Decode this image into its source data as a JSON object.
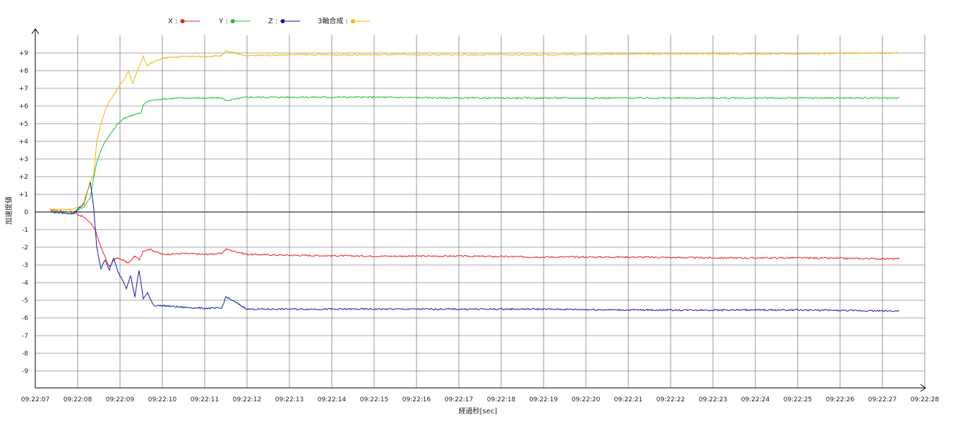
{
  "chart_data": {
    "type": "line",
    "title": "",
    "xlabel": "経過秒[sec]",
    "ylabel": "加速度値",
    "ylim": [
      -10,
      10
    ],
    "yticks": [
      "+9",
      "+8",
      "+7",
      "+6",
      "+5",
      "+4",
      "+3",
      "+2",
      "+1",
      "0",
      "-1",
      "-2",
      "-3",
      "-4",
      "-5",
      "-6",
      "-7",
      "-8",
      "-9"
    ],
    "ytick_values": [
      9,
      8,
      7,
      6,
      5,
      4,
      3,
      2,
      1,
      0,
      -1,
      -2,
      -3,
      -4,
      -5,
      -6,
      -7,
      -8,
      -9
    ],
    "xlim": [
      0,
      21
    ],
    "xticks": [
      "09:22:07",
      "09:22:08",
      "09:22:09",
      "09:22:10",
      "09:22:11",
      "09:22:12",
      "09:22:13",
      "09:22:14",
      "09:22:15",
      "09:22:16",
      "09:22:17",
      "09:22:18",
      "09:22:19",
      "09:22:20",
      "09:22:21",
      "09:22:22",
      "09:22:23",
      "09:22:24",
      "09:22:25",
      "09:22:26",
      "09:22:27",
      "09:22:28"
    ],
    "grid": true,
    "legend_position": "top-left",
    "series": [
      {
        "name": "X",
        "legend_label": "X :",
        "color": "#e8231e",
        "x": [
          0.35,
          0.9,
          1.15,
          1.3,
          1.42,
          1.5,
          1.6,
          1.75,
          1.9,
          2.05,
          2.2,
          2.35,
          2.45,
          2.55,
          2.7,
          3.0,
          3.5,
          4.0,
          4.4,
          4.5,
          5.0,
          6.0,
          8.0,
          10.0,
          12.0,
          14.0,
          16.0,
          18.0,
          20.0,
          20.4
        ],
        "y": [
          0.1,
          0.0,
          -0.3,
          -0.6,
          -1.0,
          -1.7,
          -2.3,
          -3.1,
          -2.6,
          -2.7,
          -2.9,
          -2.5,
          -2.7,
          -2.2,
          -2.1,
          -2.4,
          -2.35,
          -2.4,
          -2.35,
          -2.1,
          -2.4,
          -2.45,
          -2.5,
          -2.5,
          -2.55,
          -2.55,
          -2.6,
          -2.6,
          -2.65,
          -2.65
        ]
      },
      {
        "name": "Y",
        "legend_label": "Y :",
        "color": "#1fbf28",
        "x": [
          0.35,
          0.9,
          1.15,
          1.3,
          1.38,
          1.45,
          1.55,
          1.65,
          1.8,
          1.95,
          2.1,
          2.3,
          2.5,
          2.55,
          2.7,
          3.0,
          3.5,
          4.0,
          4.4,
          4.5,
          5.0,
          6.0,
          8.0,
          10.0,
          12.0,
          14.0,
          16.0,
          18.0,
          20.0,
          20.4
        ],
        "y": [
          0.0,
          0.0,
          0.3,
          0.8,
          2.0,
          2.8,
          3.5,
          4.0,
          4.5,
          5.0,
          5.3,
          5.5,
          5.6,
          6.1,
          6.3,
          6.4,
          6.45,
          6.45,
          6.45,
          6.3,
          6.5,
          6.5,
          6.5,
          6.45,
          6.45,
          6.45,
          6.45,
          6.45,
          6.45,
          6.45
        ]
      },
      {
        "name": "Z",
        "legend_label": "Z :",
        "color": "#0c1ca8",
        "x": [
          0.35,
          0.9,
          1.15,
          1.3,
          1.38,
          1.45,
          1.55,
          1.65,
          1.75,
          1.85,
          1.95,
          2.05,
          2.15,
          2.25,
          2.35,
          2.45,
          2.55,
          2.65,
          2.8,
          3.0,
          3.5,
          4.0,
          4.4,
          4.5,
          5.0,
          6.0,
          8.0,
          10.0,
          12.0,
          14.0,
          16.0,
          18.0,
          20.0,
          20.4
        ],
        "y": [
          0.0,
          -0.1,
          0.5,
          1.7,
          0.2,
          -2.0,
          -3.2,
          -2.7,
          -3.3,
          -2.6,
          -3.4,
          -3.8,
          -4.3,
          -3.6,
          -4.8,
          -3.3,
          -4.9,
          -4.6,
          -5.3,
          -5.3,
          -5.4,
          -5.45,
          -5.45,
          -4.8,
          -5.5,
          -5.5,
          -5.5,
          -5.5,
          -5.5,
          -5.55,
          -5.55,
          -5.55,
          -5.6,
          -5.6
        ]
      },
      {
        "name": "3軸合成",
        "legend_label": "3軸合成 :",
        "color": "#f2b800",
        "x": [
          0.35,
          0.9,
          1.15,
          1.3,
          1.38,
          1.45,
          1.55,
          1.65,
          1.75,
          1.9,
          2.0,
          2.1,
          2.2,
          2.3,
          2.4,
          2.55,
          2.65,
          2.8,
          3.0,
          3.5,
          4.0,
          4.4,
          4.5,
          5.0,
          6.0,
          8.0,
          10.0,
          12.0,
          14.0,
          16.0,
          18.0,
          20.0,
          20.4
        ],
        "y": [
          0.15,
          0.15,
          0.4,
          1.8,
          2.1,
          4.0,
          5.0,
          5.7,
          6.3,
          6.8,
          7.2,
          7.5,
          8.0,
          7.3,
          7.9,
          8.8,
          8.3,
          8.5,
          8.7,
          8.8,
          8.8,
          8.85,
          9.1,
          8.85,
          8.9,
          8.9,
          8.9,
          8.9,
          8.95,
          8.95,
          8.95,
          9.0,
          9.0
        ]
      }
    ]
  }
}
